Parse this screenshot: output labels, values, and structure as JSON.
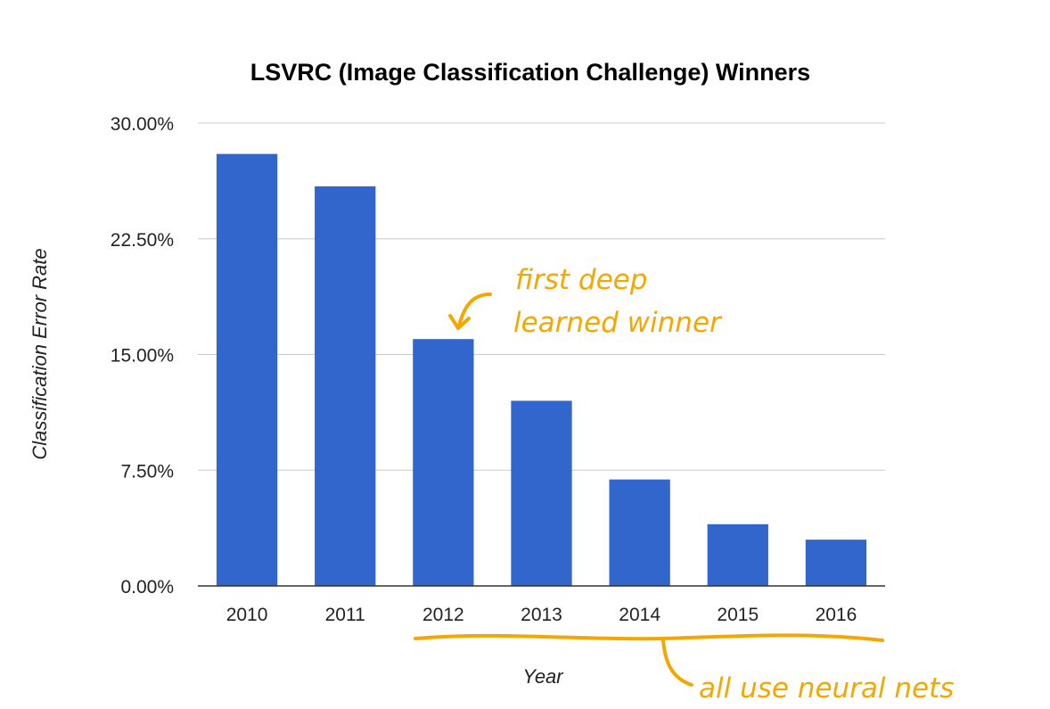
{
  "chart_data": {
    "type": "bar",
    "title": "LSVRC (Image Classification Challenge) Winners",
    "xlabel": "Year",
    "ylabel": "Classification Error Rate",
    "categories": [
      "2010",
      "2011",
      "2012",
      "2013",
      "2014",
      "2015",
      "2016"
    ],
    "values": [
      28.0,
      25.9,
      16.0,
      12.0,
      6.9,
      4.0,
      3.0
    ],
    "ylim": [
      0,
      30
    ],
    "yticks": [
      "0.00%",
      "7.50%",
      "15.00%",
      "22.50%",
      "30.00%"
    ],
    "grid": true,
    "bar_color": "#3366CC",
    "annotations": [
      {
        "text_lines": [
          "first deep",
          "learned winner"
        ],
        "target_category": "2012"
      },
      {
        "text": "all use neural nets",
        "span": [
          "2012",
          "2016"
        ]
      }
    ],
    "annotation_color": "#F5A700"
  }
}
